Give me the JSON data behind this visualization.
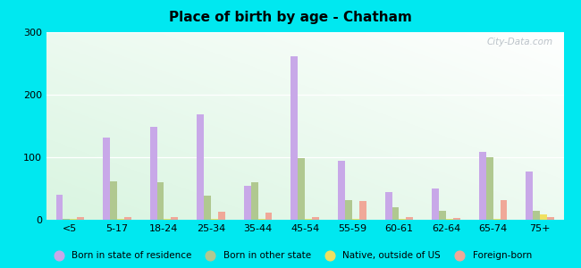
{
  "title": "Place of birth by age - Chatham",
  "categories": [
    "<5",
    "5-17",
    "18-24",
    "25-34",
    "35-44",
    "45-54",
    "55-59",
    "60-61",
    "62-64",
    "65-74",
    "75+"
  ],
  "series": {
    "Born in state of residence": [
      40,
      132,
      148,
      168,
      55,
      262,
      95,
      45,
      50,
      108,
      77
    ],
    "Born in other state": [
      2,
      62,
      60,
      38,
      60,
      98,
      32,
      20,
      15,
      100,
      14
    ],
    "Native, outside of US": [
      2,
      2,
      2,
      2,
      2,
      2,
      2,
      2,
      2,
      2,
      8
    ],
    "Foreign-born": [
      4,
      4,
      4,
      13,
      12,
      4,
      30,
      4,
      3,
      32,
      4
    ]
  },
  "colors": {
    "Born in state of residence": "#c8a8e8",
    "Born in other state": "#b0c890",
    "Native, outside of US": "#f0e060",
    "Foreign-born": "#f0a898"
  },
  "ylim": [
    0,
    300
  ],
  "yticks": [
    0,
    100,
    200,
    300
  ],
  "outer_bg": "#00e8f0",
  "bar_width": 0.15,
  "watermark": "City-Data.com"
}
